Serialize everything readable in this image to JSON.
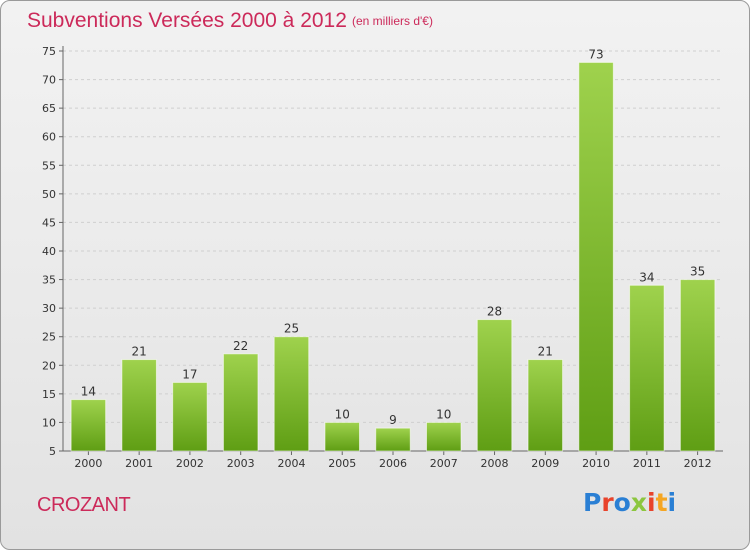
{
  "header": {
    "title": "Subventions Versées 2000 à 2012",
    "subtitle": "(en milliers d'€)"
  },
  "footer": {
    "place": "CROZANT",
    "logo": "Proxiti"
  },
  "colors": {
    "title": "#cc2a5a",
    "bar_light": "#9fd24d",
    "bar_dark": "#5f9e14",
    "logo_letters": [
      "#2a7fd4",
      "#e8432b",
      "#2a7fd4",
      "#8cc63f",
      "#e8432b",
      "#f5a623",
      "#2a7fd4"
    ]
  },
  "chart_data": {
    "type": "bar",
    "title": "Subventions Versées 2000 à 2012",
    "subtitle": "(en milliers d'€)",
    "categories": [
      "2000",
      "2001",
      "2002",
      "2003",
      "2004",
      "2005",
      "2006",
      "2007",
      "2008",
      "2009",
      "2010",
      "2011",
      "2012"
    ],
    "values": [
      14,
      21,
      17,
      22,
      25,
      10,
      9,
      10,
      28,
      21,
      73,
      34,
      35
    ],
    "ylim": [
      5,
      75
    ],
    "yticks": [
      5,
      10,
      15,
      20,
      25,
      30,
      35,
      40,
      45,
      50,
      55,
      60,
      65,
      70,
      75
    ],
    "grid": true,
    "data_labels": true,
    "legend": "none"
  }
}
